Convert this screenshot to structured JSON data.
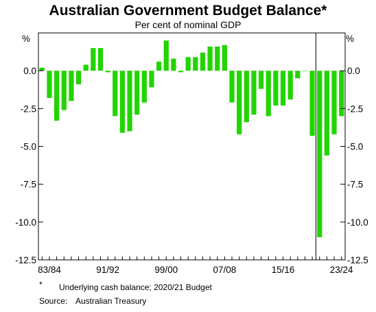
{
  "chart_data": {
    "type": "bar",
    "title": "Australian Government Budget Balance*",
    "subtitle": "Per cent of nominal GDP",
    "unit_label": "%",
    "ylim": [
      -12.5,
      2.5
    ],
    "y_ticks": [
      {
        "value": 0,
        "label": "0.0"
      },
      {
        "value": -2.5,
        "label": "-2.5"
      },
      {
        "value": -5,
        "label": "-5.0"
      },
      {
        "value": -7.5,
        "label": "-7.5"
      },
      {
        "value": -10,
        "label": "-10.0"
      },
      {
        "value": -12.5,
        "label": "-12.5"
      }
    ],
    "grid": false,
    "legend": "none",
    "bar_color": "#22d400",
    "divider_between_categories": [
      "2019/20",
      "2020/21"
    ],
    "categories": [
      "1982/83",
      "1983/84",
      "1984/85",
      "1985/86",
      "1986/87",
      "1987/88",
      "1988/89",
      "1989/90",
      "1990/91",
      "1991/92",
      "1992/93",
      "1993/94",
      "1994/95",
      "1995/96",
      "1996/97",
      "1997/98",
      "1998/99",
      "1999/00",
      "2000/01",
      "2001/02",
      "2002/03",
      "2003/04",
      "2004/05",
      "2005/06",
      "2006/07",
      "2007/08",
      "2008/09",
      "2009/10",
      "2010/11",
      "2011/12",
      "2012/13",
      "2013/14",
      "2014/15",
      "2015/16",
      "2016/17",
      "2017/18",
      "2018/19",
      "2019/20",
      "2020/21",
      "2021/22",
      "2022/23",
      "2023/24"
    ],
    "values": [
      0.2,
      -1.8,
      -3.3,
      -2.6,
      -2.0,
      -0.9,
      0.4,
      1.5,
      1.5,
      -0.1,
      -3.0,
      -4.1,
      -4.0,
      -2.9,
      -2.1,
      -1.1,
      0.6,
      2.0,
      0.8,
      -0.1,
      0.9,
      0.9,
      1.2,
      1.6,
      1.6,
      1.7,
      -2.1,
      -4.2,
      -3.4,
      -2.9,
      -1.2,
      -3.0,
      -2.3,
      -2.3,
      -1.9,
      -0.5,
      0.0,
      -4.3,
      -11.0,
      -5.6,
      -4.2,
      -3.0
    ],
    "x_tick_labels": [
      {
        "label": "83/84",
        "category": "1983/84"
      },
      {
        "label": "91/92",
        "category": "1991/92"
      },
      {
        "label": "99/00",
        "category": "1999/00"
      },
      {
        "label": "07/08",
        "category": "2007/08"
      },
      {
        "label": "15/16",
        "category": "2015/16"
      },
      {
        "label": "23/24",
        "category": "2023/24"
      }
    ]
  },
  "notes": {
    "footnote_marker": "*",
    "footnote_text": "Underlying cash balance; 2020/21 Budget",
    "source_label": "Source:",
    "source_text": "Australian Treasury"
  }
}
